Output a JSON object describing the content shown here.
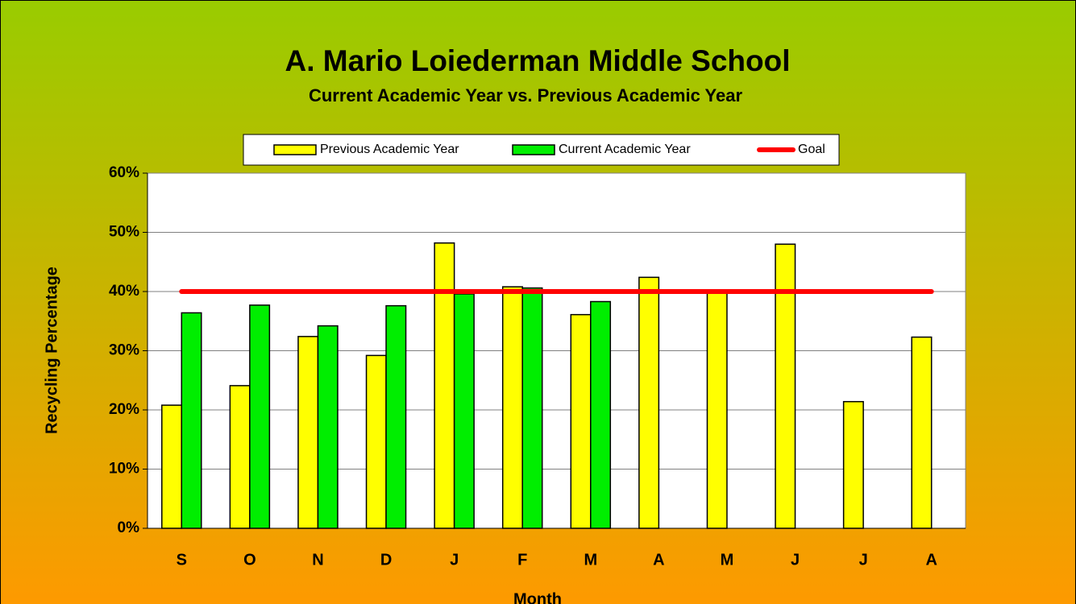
{
  "chart_data": {
    "type": "bar",
    "title": "A. Mario Loiederman Middle School",
    "subtitle": "Current Academic Year vs. Previous Academic Year",
    "x_label": "Month",
    "y_label": "Recycling Percentage",
    "categories": [
      "S",
      "O",
      "N",
      "D",
      "J",
      "F",
      "M",
      "A",
      "M",
      "J",
      "J",
      "A"
    ],
    "series": [
      {
        "name": "Previous Academic Year",
        "color": "#ffff00",
        "values": [
          20.8,
          24.1,
          32.4,
          29.2,
          48.2,
          40.8,
          36.1,
          42.4,
          39.8,
          48.0,
          21.4,
          32.3
        ]
      },
      {
        "name": "Current Academic Year",
        "color": "#00ee00",
        "values": [
          36.4,
          37.7,
          34.2,
          37.6,
          39.6,
          40.6,
          38.3,
          null,
          null,
          null,
          null,
          null
        ]
      },
      {
        "name": "Goal",
        "type": "line",
        "color": "#ff0000",
        "values": [
          40,
          40,
          40,
          40,
          40,
          40,
          40,
          40,
          40,
          40,
          40,
          40
        ]
      }
    ],
    "ylim": [
      0,
      60
    ],
    "yticks": [
      {
        "value": 0,
        "label": "0%"
      },
      {
        "value": 10,
        "label": "10%"
      },
      {
        "value": 20,
        "label": "20%"
      },
      {
        "value": 30,
        "label": "30%"
      },
      {
        "value": 40,
        "label": "40%"
      },
      {
        "value": 50,
        "label": "50%"
      },
      {
        "value": 60,
        "label": "60%"
      }
    ],
    "grid": true,
    "legend": "top"
  }
}
